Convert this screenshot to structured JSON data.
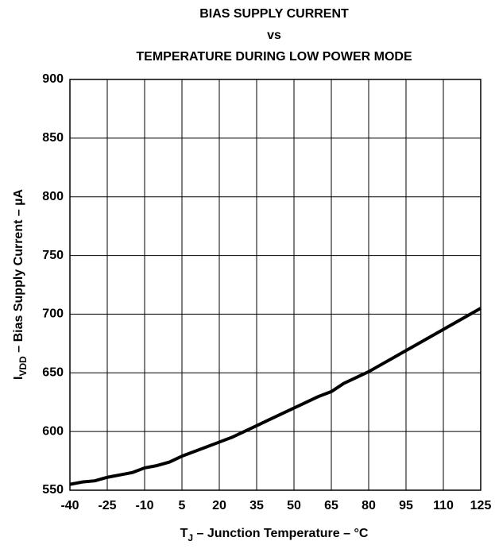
{
  "chart_data": {
    "type": "line",
    "title": [
      "BIAS SUPPLY CURRENT",
      "vs",
      "TEMPERATURE DURING LOW POWER MODE"
    ],
    "xlabel": [
      "T",
      "J",
      " – Junction Temperature – °C"
    ],
    "ylabel": [
      "I",
      "VDD",
      " – Bias Supply Current – µA"
    ],
    "x": [
      -40,
      -35,
      -30,
      -25,
      -20,
      -15,
      -10,
      -5,
      0,
      5,
      10,
      15,
      20,
      25,
      30,
      35,
      40,
      45,
      50,
      55,
      60,
      65,
      70,
      75,
      80,
      85,
      90,
      95,
      100,
      105,
      110,
      115,
      120,
      125
    ],
    "series": [
      {
        "color": "#000000",
        "values": [
          555,
          557,
          558,
          561,
          563,
          565,
          569,
          571,
          574,
          579,
          583,
          587,
          591,
          595,
          600,
          605,
          610,
          615,
          620,
          625,
          630,
          634,
          641,
          646,
          651,
          657,
          663,
          669,
          675,
          681,
          687,
          693,
          699,
          705
        ]
      }
    ],
    "xlim": [
      -40,
      125
    ],
    "xticks": [
      -40,
      -25,
      -10,
      5,
      20,
      35,
      50,
      65,
      80,
      95,
      110,
      125
    ],
    "ylim": [
      550,
      900
    ],
    "yticks": [
      550,
      600,
      650,
      700,
      750,
      800,
      850,
      900
    ],
    "grid": true
  }
}
